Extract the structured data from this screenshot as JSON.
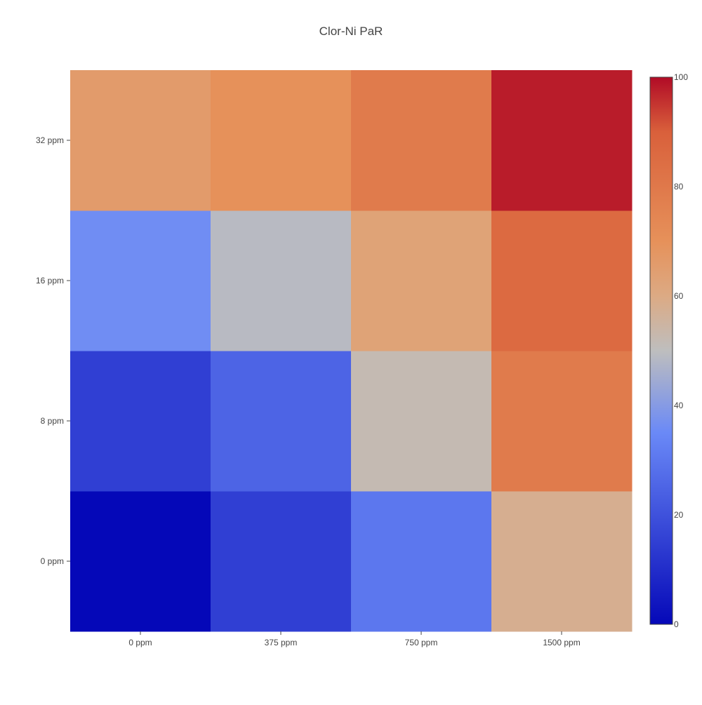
{
  "chart_data": {
    "type": "heatmap",
    "title": "Clor-Ni PaR",
    "x_categories": [
      "0 ppm",
      "375 ppm",
      "750 ppm",
      "1500 ppm"
    ],
    "y_categories": [
      "0 ppm",
      "8 ppm",
      "16 ppm",
      "32 ppm"
    ],
    "z": [
      [
        0,
        15,
        30,
        58
      ],
      [
        15,
        25,
        52,
        79
      ],
      [
        36,
        49,
        63,
        86
      ],
      [
        66,
        70,
        79,
        98
      ]
    ],
    "zrange": [
      0,
      100
    ],
    "colorscale_name": "RdBu-like coolwarm",
    "colorscale": [
      [
        0.0,
        "#0508b8"
      ],
      [
        0.35,
        "#6a89f7"
      ],
      [
        0.5,
        "#bebebe"
      ],
      [
        0.6,
        "#dcaa84"
      ],
      [
        0.7,
        "#e6915a"
      ],
      [
        0.9,
        "#d9603b"
      ],
      [
        1.0,
        "#b10b26"
      ]
    ],
    "colorbar": {
      "ticks": [
        0,
        20,
        40,
        60,
        80,
        100
      ],
      "placement": "right"
    },
    "xlabel": "",
    "ylabel": "",
    "grid": false
  }
}
